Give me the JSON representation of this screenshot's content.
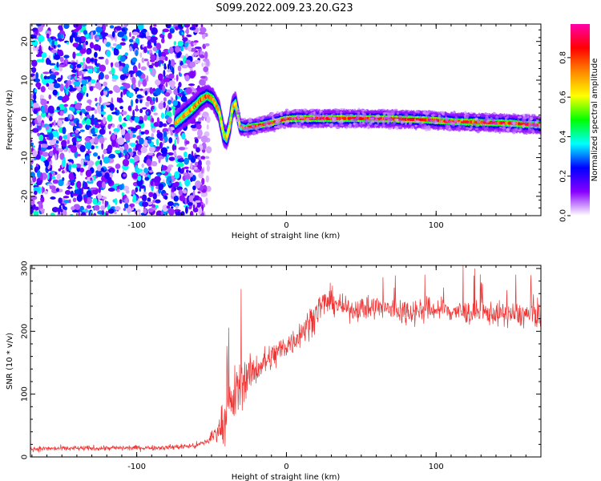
{
  "title": "S099.2022.009.23.20.G23",
  "chart_data": [
    {
      "type": "heatmap",
      "xlabel": "Height of straight line (km)",
      "ylabel": "Frequency (Hz)",
      "xlim": [
        -171,
        170
      ],
      "ylim": [
        -25,
        24.5
      ],
      "xticks": [
        -100,
        0,
        100
      ],
      "xtick_labels": [
        "-100",
        "0",
        "100"
      ],
      "yticks": [
        -20,
        -10,
        0,
        10,
        20
      ],
      "ytick_labels": [
        "-20",
        "-10",
        "0",
        "10",
        "20"
      ],
      "noise_region_x": [
        -171,
        -58
      ],
      "ridge": {
        "x": [
          -74,
          -68,
          -62,
          -57,
          -53,
          -49,
          -45,
          -42,
          -40,
          -38,
          -36,
          -34,
          -31,
          -28,
          -25,
          -20,
          -15,
          -10,
          -5,
          0,
          10,
          20,
          30,
          40,
          50,
          60,
          70,
          80,
          90,
          100,
          110,
          120,
          130,
          140,
          150,
          160,
          170
        ],
        "y": [
          -1,
          1,
          3,
          5,
          6,
          5,
          2,
          -4,
          -5,
          -2,
          3,
          4,
          -2,
          -2.3,
          -2.1,
          -1.8,
          -1.4,
          -1,
          -0.5,
          0,
          0.1,
          0.1,
          0.1,
          0.1,
          0.1,
          0,
          0,
          -0.1,
          -0.2,
          -0.4,
          -0.7,
          -0.8,
          -0.9,
          -1.0,
          -1.1,
          -1.4,
          -1.6
        ],
        "width": [
          1.5,
          1.6,
          1.6,
          1.5,
          1.4,
          1.4,
          1.5,
          1.5,
          1.5,
          1.5,
          1.5,
          1.5,
          1.1,
          1.0,
          1.0,
          1.0,
          1.0,
          1.0,
          1.0,
          1.0,
          1.1,
          1.1,
          1.1,
          1.1,
          1.1,
          1.1,
          1.1,
          1.1,
          1.1,
          1.1,
          1.1,
          1.1,
          1.1,
          1.1,
          1.1,
          1.1,
          1.1
        ],
        "peak": [
          0.75,
          0.8,
          0.85,
          0.9,
          0.9,
          0.85,
          0.8,
          0.7,
          0.75,
          0.7,
          0.75,
          0.8,
          0.75,
          0.82,
          0.88,
          0.92,
          0.95,
          0.97,
          0.99,
          1.0,
          1.0,
          1.0,
          1.0,
          1.0,
          1.0,
          1.0,
          0.98,
          0.97,
          0.97,
          0.96,
          0.96,
          0.96,
          0.95,
          0.95,
          0.94,
          0.93,
          0.92
        ]
      },
      "colorbar": {
        "label": "Normalized spectral amplitude",
        "range": [
          0,
          0.97
        ],
        "ticks": [
          0.0,
          0.2,
          0.4,
          0.6,
          0.8
        ],
        "tick_labels": [
          "0.0",
          "0.2",
          "0.4",
          "0.6",
          "0.8"
        ],
        "colors": [
          "#ffffff",
          "#8800ff",
          "#0000ff",
          "#00ffff",
          "#00ff00",
          "#ffff00",
          "#ff8800",
          "#ff0000",
          "#ff00aa"
        ]
      }
    },
    {
      "type": "line",
      "xlabel": "Height of straight line (km)",
      "ylabel": "SNR (10 * v/v)",
      "xlim": [
        -171,
        170
      ],
      "ylim": [
        0,
        305
      ],
      "xticks": [
        -100,
        0,
        100
      ],
      "xtick_labels": [
        "-100",
        "0",
        "100"
      ],
      "yticks": [
        0,
        100,
        200,
        300
      ],
      "ytick_labels": [
        "0",
        "100",
        "200",
        "300"
      ],
      "series": [
        {
          "color": "#ee3333",
          "x": [
            -171,
            -120,
            -80,
            -60,
            -52,
            -45,
            -40,
            -35,
            -30,
            -25,
            -20,
            -15,
            -10,
            -5,
            0,
            5,
            10,
            15,
            20,
            25,
            30,
            40,
            60,
            80,
            100,
            120,
            140,
            160,
            170
          ],
          "mean": [
            13,
            14,
            15,
            18,
            26,
            45,
            65,
            95,
            120,
            130,
            140,
            150,
            158,
            168,
            178,
            185,
            200,
            212,
            232,
            245,
            248,
            235,
            238,
            232,
            235,
            230,
            228,
            226,
            228
          ],
          "spread": [
            5,
            5,
            5,
            6,
            10,
            25,
            45,
            55,
            45,
            35,
            30,
            30,
            28,
            28,
            25,
            24,
            28,
            30,
            28,
            28,
            25,
            20,
            24,
            26,
            22,
            22,
            22,
            24,
            28
          ]
        }
      ]
    }
  ]
}
